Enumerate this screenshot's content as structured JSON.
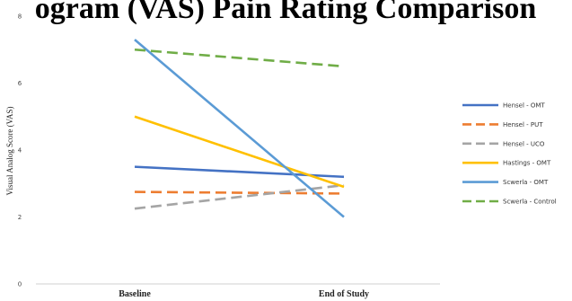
{
  "chart_data": {
    "type": "line",
    "title": "ogram (VAS) Pain Rating Comparison",
    "ylabel": "Visual Analog Score (VAS)",
    "xlabel": "",
    "categories": [
      "Baseline",
      "End of Study"
    ],
    "ylim": [
      0,
      8
    ],
    "yticks": [
      0,
      2,
      4,
      6,
      8
    ],
    "grid": false,
    "legend": "right",
    "series": [
      {
        "name": "Hensel - OMT",
        "values": [
          3.5,
          3.2
        ],
        "color": "#4472c4",
        "dash": "solid"
      },
      {
        "name": "Hensel - PUT",
        "values": [
          2.75,
          2.7
        ],
        "color": "#ed7d31",
        "dash": "dashed"
      },
      {
        "name": "Hensel - UCO",
        "values": [
          2.25,
          2.95
        ],
        "color": "#a5a5a5",
        "dash": "dashed"
      },
      {
        "name": "Hastings - OMT",
        "values": [
          5.0,
          2.9
        ],
        "color": "#ffc000",
        "dash": "solid"
      },
      {
        "name": "Scwerla - OMT",
        "values": [
          7.3,
          2.0
        ],
        "color": "#5b9bd5",
        "dash": "solid"
      },
      {
        "name": "Scwerla - Control",
        "values": [
          7.0,
          6.5
        ],
        "color": "#70ad47",
        "dash": "dashed"
      }
    ]
  }
}
